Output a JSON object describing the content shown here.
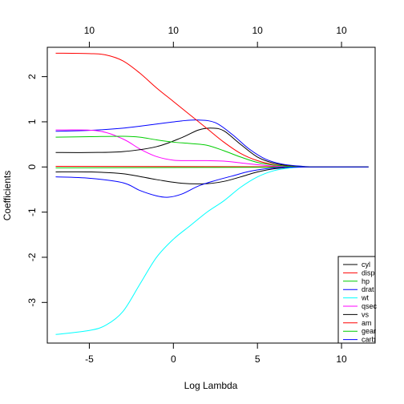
{
  "chart_data": {
    "type": "line",
    "title": "",
    "xlabel": "Log Lambda",
    "ylabel": "Coefficients",
    "xlim": [
      -7.5,
      12
    ],
    "ylim": [
      -3.9,
      2.65
    ],
    "x_ticks": [
      -5,
      0,
      5,
      10
    ],
    "y_ticks": [
      -3,
      -2,
      -1,
      0,
      1,
      2
    ],
    "top_axis": {
      "ticks": [
        -5,
        0,
        5,
        10
      ],
      "labels": [
        "10",
        "10",
        "10",
        "10"
      ]
    },
    "legend": {
      "position": "bottom-right"
    },
    "grid": false,
    "series": [
      {
        "name": "cyl",
        "color": "#000000",
        "points": [
          [
            -7,
            -0.11
          ],
          [
            -5,
            -0.11
          ],
          [
            -3,
            -0.15
          ],
          [
            -1,
            -0.28
          ],
          [
            0.5,
            -0.36
          ],
          [
            2,
            -0.37
          ],
          [
            3,
            -0.32
          ],
          [
            4,
            -0.22
          ],
          [
            5,
            -0.11
          ],
          [
            6,
            -0.04
          ],
          [
            7,
            -0.01
          ],
          [
            8,
            0
          ],
          [
            11.6,
            0
          ]
        ]
      },
      {
        "name": "disp",
        "color": "#FF0000",
        "points": [
          [
            -7,
            0.013
          ],
          [
            11.6,
            0
          ]
        ]
      },
      {
        "name": "hp",
        "color": "#00CD00",
        "points": [
          [
            -7,
            -0.02
          ],
          [
            11.6,
            0
          ]
        ]
      },
      {
        "name": "drat",
        "color": "#0000FF",
        "points": [
          [
            -7,
            0.79
          ],
          [
            -5,
            0.81
          ],
          [
            -3,
            0.86
          ],
          [
            -1,
            0.95
          ],
          [
            0.5,
            1.02
          ],
          [
            1.5,
            1.04
          ],
          [
            2.5,
            0.98
          ],
          [
            3.5,
            0.72
          ],
          [
            4.5,
            0.4
          ],
          [
            5.5,
            0.17
          ],
          [
            6.5,
            0.06
          ],
          [
            7.5,
            0.02
          ],
          [
            8.5,
            0
          ],
          [
            11.6,
            0
          ]
        ]
      },
      {
        "name": "wt",
        "color": "#00FFFF",
        "points": [
          [
            -7,
            -3.71
          ],
          [
            -5,
            -3.62
          ],
          [
            -4,
            -3.5
          ],
          [
            -3,
            -3.2
          ],
          [
            -2,
            -2.6
          ],
          [
            -1,
            -2.0
          ],
          [
            0,
            -1.6
          ],
          [
            1,
            -1.3
          ],
          [
            2,
            -1.0
          ],
          [
            3,
            -0.75
          ],
          [
            4,
            -0.45
          ],
          [
            5,
            -0.22
          ],
          [
            6,
            -0.08
          ],
          [
            7,
            -0.02
          ],
          [
            8,
            0
          ],
          [
            11.6,
            0
          ]
        ]
      },
      {
        "name": "qsec",
        "color": "#FF00FF",
        "points": [
          [
            -7,
            0.82
          ],
          [
            -4.5,
            0.8
          ],
          [
            -3,
            0.62
          ],
          [
            -2,
            0.4
          ],
          [
            -1,
            0.23
          ],
          [
            0,
            0.15
          ],
          [
            1,
            0.14
          ],
          [
            2,
            0.14
          ],
          [
            3,
            0.13
          ],
          [
            4,
            0.09
          ],
          [
            5,
            0.05
          ],
          [
            6,
            0.02
          ],
          [
            7,
            0.005
          ],
          [
            8,
            0
          ],
          [
            11.6,
            0
          ]
        ]
      },
      {
        "name": "vs",
        "color": "#000000",
        "points": [
          [
            -7,
            0.32
          ],
          [
            -5,
            0.32
          ],
          [
            -3,
            0.34
          ],
          [
            -1,
            0.45
          ],
          [
            0.5,
            0.65
          ],
          [
            1.5,
            0.82
          ],
          [
            2.3,
            0.86
          ],
          [
            3,
            0.8
          ],
          [
            4,
            0.5
          ],
          [
            5,
            0.22
          ],
          [
            6,
            0.08
          ],
          [
            7,
            0.02
          ],
          [
            8,
            0
          ],
          [
            11.6,
            0
          ]
        ]
      },
      {
        "name": "am",
        "color": "#FF0000",
        "points": [
          [
            -7,
            2.52
          ],
          [
            -5,
            2.51
          ],
          [
            -4,
            2.48
          ],
          [
            -3,
            2.35
          ],
          [
            -2,
            2.08
          ],
          [
            -1,
            1.75
          ],
          [
            0,
            1.45
          ],
          [
            1,
            1.15
          ],
          [
            2,
            0.85
          ],
          [
            3,
            0.55
          ],
          [
            4,
            0.3
          ],
          [
            5,
            0.14
          ],
          [
            6,
            0.05
          ],
          [
            7,
            0.015
          ],
          [
            8,
            0
          ],
          [
            11.6,
            0
          ]
        ]
      },
      {
        "name": "gear",
        "color": "#00CD00",
        "points": [
          [
            -7,
            0.66
          ],
          [
            -5,
            0.67
          ],
          [
            -3,
            0.68
          ],
          [
            -2,
            0.66
          ],
          [
            -1,
            0.6
          ],
          [
            0,
            0.55
          ],
          [
            1,
            0.52
          ],
          [
            2,
            0.48
          ],
          [
            3,
            0.36
          ],
          [
            4,
            0.22
          ],
          [
            5,
            0.1
          ],
          [
            6,
            0.04
          ],
          [
            7,
            0.01
          ],
          [
            8,
            0
          ],
          [
            11.6,
            0
          ]
        ]
      },
      {
        "name": "carb",
        "color": "#0000FF",
        "points": [
          [
            -7,
            -0.22
          ],
          [
            -5,
            -0.25
          ],
          [
            -3,
            -0.35
          ],
          [
            -2,
            -0.52
          ],
          [
            -1,
            -0.64
          ],
          [
            -0.3,
            -0.67
          ],
          [
            0.5,
            -0.6
          ],
          [
            1.5,
            -0.42
          ],
          [
            2.5,
            -0.3
          ],
          [
            3.5,
            -0.2
          ],
          [
            4.5,
            -0.1
          ],
          [
            5.5,
            -0.04
          ],
          [
            6.5,
            -0.01
          ],
          [
            8,
            0
          ],
          [
            11.6,
            0
          ]
        ]
      }
    ]
  }
}
